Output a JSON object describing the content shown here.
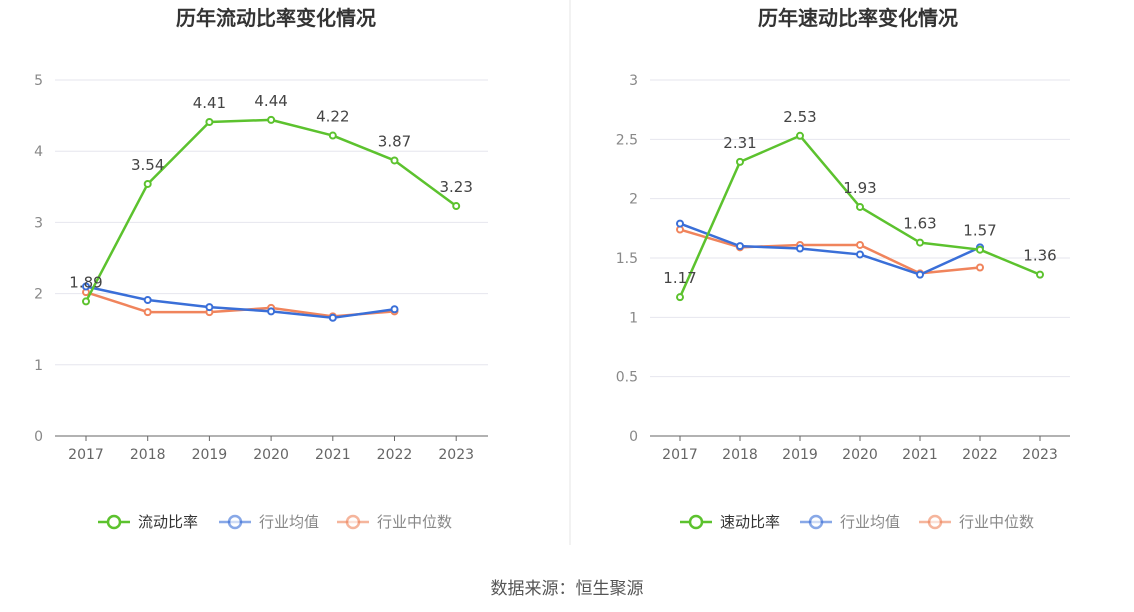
{
  "source_text": "数据来源：恒生聚源",
  "colors": {
    "company": "#5cc22e",
    "industry_avg": "#3a6fd8",
    "industry_median": "#f0845c",
    "grid": "#e6e6ee",
    "axis": "#666666",
    "divider": "#e6e6e6"
  },
  "chart_data": [
    {
      "type": "line",
      "title": "历年流动比率变化情况",
      "xlabel": "",
      "ylabel": "",
      "categories": [
        "2017",
        "2018",
        "2019",
        "2020",
        "2021",
        "2022",
        "2023"
      ],
      "ylim": [
        0,
        5
      ],
      "yticks": [
        0,
        1,
        2,
        3,
        4,
        5
      ],
      "ytick_labels": [
        "0",
        "1",
        "2",
        "3",
        "4",
        "5"
      ],
      "grid": true,
      "legend_position": "bottom",
      "series": [
        {
          "name": "流动比率",
          "values": [
            1.89,
            3.54,
            4.41,
            4.44,
            4.22,
            3.87,
            3.23
          ],
          "labels": [
            "1.89",
            "3.54",
            "4.41",
            "4.44",
            "4.22",
            "3.87",
            "3.23"
          ]
        },
        {
          "name": "行业均值",
          "values": [
            2.1,
            1.91,
            1.81,
            1.75,
            1.66,
            1.78,
            null
          ]
        },
        {
          "name": "行业中位数",
          "values": [
            2.02,
            1.74,
            1.74,
            1.8,
            1.68,
            1.75,
            null
          ]
        }
      ]
    },
    {
      "type": "line",
      "title": "历年速动比率变化情况",
      "xlabel": "",
      "ylabel": "",
      "categories": [
        "2017",
        "2018",
        "2019",
        "2020",
        "2021",
        "2022",
        "2023"
      ],
      "ylim": [
        0,
        3
      ],
      "yticks": [
        0,
        0.5,
        1,
        1.5,
        2,
        2.5,
        3
      ],
      "ytick_labels": [
        "0",
        "0.5",
        "1",
        "1.5",
        "2",
        "2.5",
        "3"
      ],
      "grid": true,
      "legend_position": "bottom",
      "series": [
        {
          "name": "速动比率",
          "values": [
            1.17,
            2.31,
            2.53,
            1.93,
            1.63,
            1.57,
            1.36
          ],
          "labels": [
            "1.17",
            "2.31",
            "2.53",
            "1.93",
            "1.63",
            "1.57",
            "1.36"
          ]
        },
        {
          "name": "行业均值",
          "values": [
            1.79,
            1.6,
            1.58,
            1.53,
            1.36,
            1.59,
            null
          ]
        },
        {
          "name": "行业中位数",
          "values": [
            1.74,
            1.59,
            1.61,
            1.61,
            1.37,
            1.42,
            null
          ]
        }
      ]
    }
  ]
}
